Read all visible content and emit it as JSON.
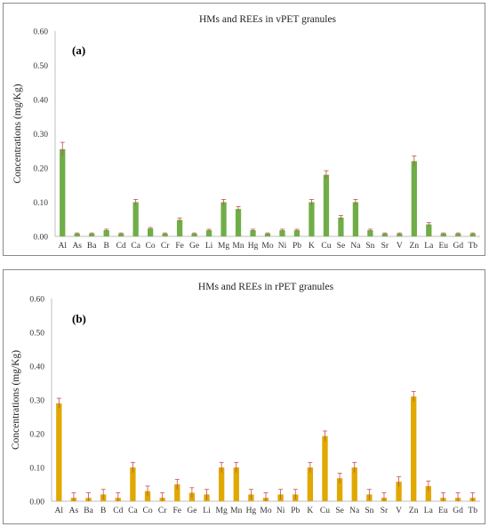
{
  "chart_data": [
    {
      "type": "bar",
      "title": "HMs and REEs in vPET granules",
      "panel_label": "(a)",
      "ylabel": "Concentrations (mg/Kg)",
      "xlabel": "",
      "ylim": [
        0,
        0.6
      ],
      "yticks": [
        "0.00",
        "0.10",
        "0.20",
        "0.30",
        "0.40",
        "0.50",
        "0.60"
      ],
      "grid": false,
      "bar_color": "#70ad47",
      "error_color": "#c0504d",
      "categories": [
        "Al",
        "As",
        "Ba",
        "B",
        "Cd",
        "Ca",
        "Co",
        "Cr",
        "Fe",
        "Ge",
        "Li",
        "Mg",
        "Mn",
        "Hg",
        "Mo",
        "Ni",
        "Pb",
        "K",
        "Cu",
        "Se",
        "Na",
        "Sn",
        "Sr",
        "V",
        "Zn",
        "La",
        "Eu",
        "Gd",
        "Tb"
      ],
      "values": [
        0.255,
        0.008,
        0.008,
        0.018,
        0.008,
        0.1,
        0.023,
        0.008,
        0.048,
        0.008,
        0.018,
        0.1,
        0.08,
        0.018,
        0.008,
        0.018,
        0.018,
        0.1,
        0.18,
        0.055,
        0.1,
        0.018,
        0.008,
        0.008,
        0.22,
        0.035,
        0.008,
        0.008,
        0.008
      ],
      "errors": [
        0.02,
        0.002,
        0.002,
        0.003,
        0.002,
        0.008,
        0.003,
        0.002,
        0.006,
        0.002,
        0.003,
        0.008,
        0.007,
        0.003,
        0.002,
        0.003,
        0.003,
        0.008,
        0.012,
        0.006,
        0.008,
        0.003,
        0.002,
        0.002,
        0.015,
        0.005,
        0.002,
        0.002,
        0.002
      ]
    },
    {
      "type": "bar",
      "title": "HMs and REEs in rPET granules",
      "panel_label": "(b)",
      "ylabel": "Concentrations (mg/Kg)",
      "xlabel": "",
      "ylim": [
        0,
        0.6
      ],
      "yticks": [
        "0.00",
        "0.10",
        "0.20",
        "0.30",
        "0.40",
        "0.50",
        "0.60"
      ],
      "grid": false,
      "bar_color": "#e0a800",
      "error_color": "#c0504d",
      "categories": [
        "Al",
        "As",
        "Ba",
        "B",
        "Cd",
        "Ca",
        "Co",
        "Cr",
        "Fe",
        "Ge",
        "Li",
        "Mg",
        "Mn",
        "Hg",
        "Mo",
        "Ni",
        "Pb",
        "K",
        "Cu",
        "Se",
        "Na",
        "Sn",
        "Sr",
        "V",
        "Zn",
        "La",
        "Eu",
        "Gd",
        "Tb"
      ],
      "values": [
        0.29,
        0.01,
        0.01,
        0.02,
        0.01,
        0.1,
        0.03,
        0.01,
        0.05,
        0.025,
        0.02,
        0.1,
        0.1,
        0.02,
        0.01,
        0.02,
        0.02,
        0.1,
        0.193,
        0.068,
        0.1,
        0.02,
        0.01,
        0.058,
        0.31,
        0.045,
        0.01,
        0.01,
        0.01
      ],
      "errors": [
        0.015,
        0.015,
        0.015,
        0.015,
        0.015,
        0.015,
        0.015,
        0.015,
        0.015,
        0.015,
        0.015,
        0.015,
        0.015,
        0.015,
        0.015,
        0.015,
        0.015,
        0.015,
        0.015,
        0.015,
        0.015,
        0.015,
        0.015,
        0.015,
        0.015,
        0.015,
        0.015,
        0.015,
        0.015
      ]
    }
  ]
}
